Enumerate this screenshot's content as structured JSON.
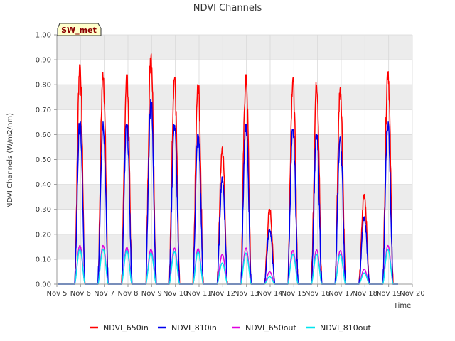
{
  "chart_data": {
    "type": "line",
    "title": "NDVI Channels",
    "xlabel": "Time",
    "ylabel": "NDVI Channels (W/m2/nm)",
    "badge": "SW_met",
    "xlim": [
      5,
      20
    ],
    "ylim": [
      0,
      1.0
    ],
    "x_ticks": [
      {
        "value": 5,
        "label": "Nov 5"
      },
      {
        "value": 6,
        "label": "Nov 6"
      },
      {
        "value": 7,
        "label": "Nov 7"
      },
      {
        "value": 8,
        "label": "Nov 8"
      },
      {
        "value": 9,
        "label": "Nov 9"
      },
      {
        "value": 10,
        "label": "Nov 10"
      },
      {
        "value": 11,
        "label": "Nov 11"
      },
      {
        "value": 12,
        "label": "Nov 12"
      },
      {
        "value": 13,
        "label": "Nov 13"
      },
      {
        "value": 14,
        "label": "Nov 14"
      },
      {
        "value": 15,
        "label": "Nov 15"
      },
      {
        "value": 16,
        "label": "Nov 16"
      },
      {
        "value": 17,
        "label": "Nov 17"
      },
      {
        "value": 18,
        "label": "Nov 18"
      },
      {
        "value": 19,
        "label": "Nov 19"
      },
      {
        "value": 20,
        "label": "Nov 20"
      }
    ],
    "y_ticks": [
      {
        "value": 0.0,
        "label": "0.00"
      },
      {
        "value": 0.1,
        "label": "0.10"
      },
      {
        "value": 0.2,
        "label": "0.20"
      },
      {
        "value": 0.3,
        "label": "0.30"
      },
      {
        "value": 0.4,
        "label": "0.40"
      },
      {
        "value": 0.5,
        "label": "0.50"
      },
      {
        "value": 0.6,
        "label": "0.60"
      },
      {
        "value": 0.7,
        "label": "0.70"
      },
      {
        "value": 0.8,
        "label": "0.80"
      },
      {
        "value": 0.9,
        "label": "0.90"
      },
      {
        "value": 1.0,
        "label": "1.00"
      }
    ],
    "days": {
      "noon": [
        5.97,
        6.95,
        7.95,
        8.97,
        9.96,
        10.96,
        11.98,
        12.98,
        13.98,
        14.96,
        15.96,
        16.96,
        17.97,
        18.97
      ],
      "half_width": 0.22,
      "series": [
        {
          "name": "NDVI_650in",
          "color": "#ff0000",
          "peaks": [
            0.88,
            0.85,
            0.84,
            0.93,
            0.83,
            0.8,
            0.55,
            0.84,
            0.3,
            0.83,
            0.81,
            0.79,
            0.36,
            0.86
          ],
          "noise": 0.05
        },
        {
          "name": "NDVI_810in",
          "color": "#0000ee",
          "peaks": [
            0.65,
            0.65,
            0.64,
            0.74,
            0.64,
            0.6,
            0.43,
            0.64,
            0.22,
            0.62,
            0.6,
            0.59,
            0.27,
            0.65
          ],
          "noise": 0.05
        },
        {
          "name": "NDVI_650out",
          "color": "#e000e0",
          "peaks": [
            0.155,
            0.155,
            0.148,
            0.14,
            0.145,
            0.143,
            0.12,
            0.145,
            0.05,
            0.135,
            0.137,
            0.135,
            0.06,
            0.155
          ],
          "noise": 0.01
        },
        {
          "name": "NDVI_810out",
          "color": "#00e5ee",
          "peaks": [
            0.14,
            0.14,
            0.135,
            0.125,
            0.13,
            0.13,
            0.085,
            0.125,
            0.03,
            0.12,
            0.12,
            0.12,
            0.045,
            0.14
          ],
          "noise": 0.01
        }
      ]
    },
    "legend": [
      {
        "name": "NDVI_650in",
        "color": "#ff0000"
      },
      {
        "name": "NDVI_810in",
        "color": "#0000ee"
      },
      {
        "name": "NDVI_650out",
        "color": "#e000e0"
      },
      {
        "name": "NDVI_810out",
        "color": "#00e5ee"
      }
    ],
    "legend_position": "bottom-center",
    "grid": true
  }
}
